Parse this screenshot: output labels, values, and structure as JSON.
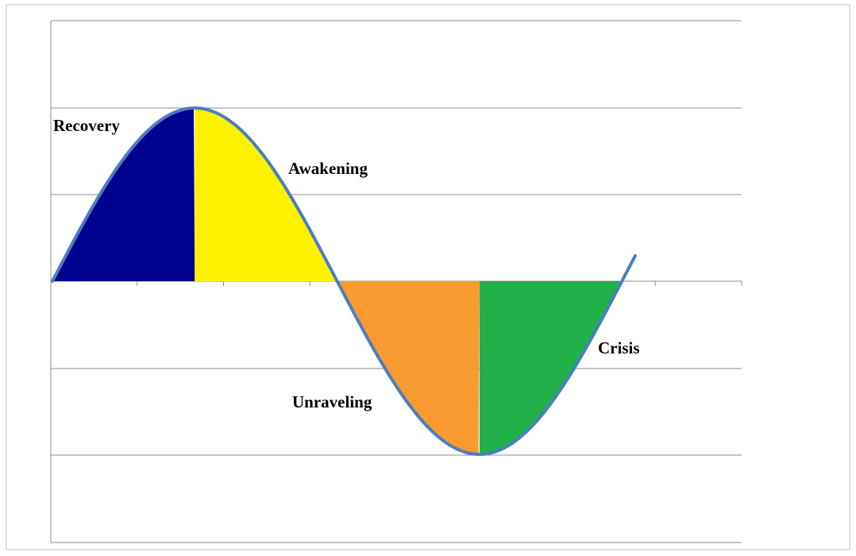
{
  "labels": {
    "recovery": "Recovery",
    "awakening": "Awakening",
    "unraveling": "Unraveling",
    "crisis": "Crisis"
  }
}
